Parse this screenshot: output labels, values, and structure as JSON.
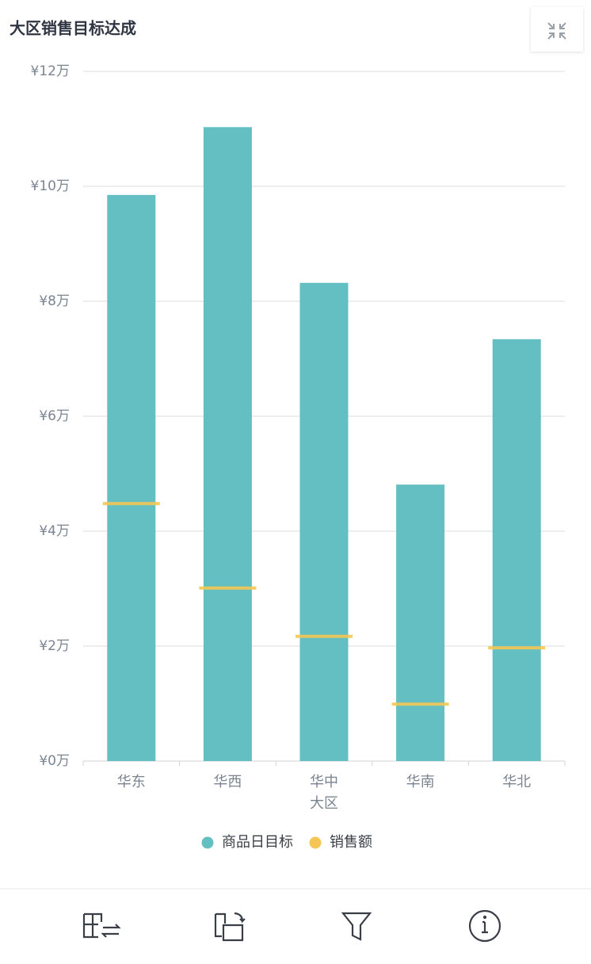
{
  "chart_data": {
    "type": "bar",
    "title": "大区销售目标达成",
    "x_label": "大区",
    "categories": [
      "华东",
      "华西",
      "华中",
      "华南",
      "华北"
    ],
    "series": [
      {
        "name": "商品日目标",
        "color": "#63bfc1",
        "type": "bar",
        "values": [
          9.85,
          11.03,
          8.32,
          4.81,
          7.34
        ]
      },
      {
        "name": "销售额",
        "color": "#f5c654",
        "type": "marker",
        "values": [
          4.48,
          3.01,
          2.17,
          0.99,
          1.97
        ]
      }
    ],
    "ylim": [
      0,
      12
    ],
    "yticks": [
      {
        "value": 0,
        "label": "¥0万"
      },
      {
        "value": 2,
        "label": "¥2万"
      },
      {
        "value": 4,
        "label": "¥4万"
      },
      {
        "value": 6,
        "label": "¥6万"
      },
      {
        "value": 8,
        "label": "¥8万"
      },
      {
        "value": 10,
        "label": "¥10万"
      },
      {
        "value": 12,
        "label": "¥12万"
      }
    ],
    "grid": true
  }
}
